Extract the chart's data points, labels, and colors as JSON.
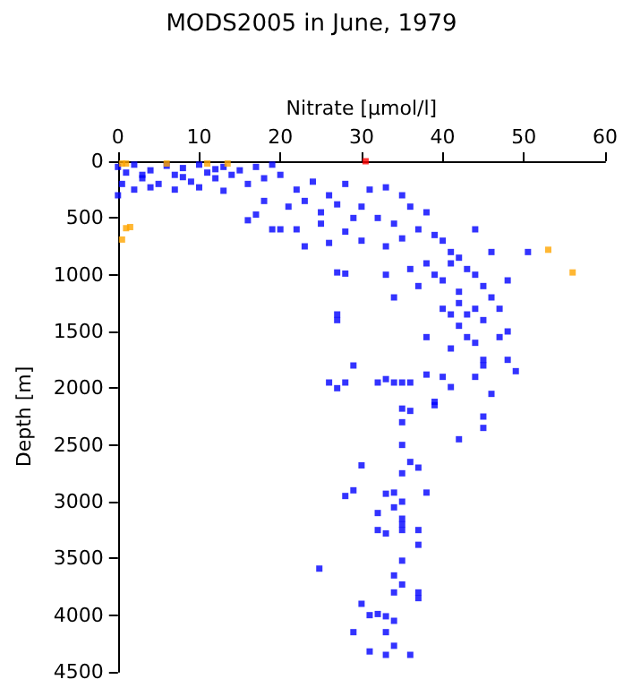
{
  "chart_data": {
    "type": "scatter",
    "title": "MODS2005 in June, 1979",
    "xlabel": "Nitrate [µmol/l]",
    "ylabel": "Depth [m]",
    "xlim": [
      0,
      60
    ],
    "xticks": [
      0,
      10,
      20,
      30,
      40,
      50,
      60
    ],
    "ylim": [
      4500,
      0
    ],
    "yticks": [
      0,
      500,
      1000,
      1500,
      2000,
      2500,
      3000,
      3500,
      4000,
      4500
    ],
    "grid": false,
    "marker": "square",
    "series": [
      {
        "color": "#0000ff",
        "x": [
          0,
          1,
          2,
          3,
          4,
          5,
          6,
          7,
          8,
          9,
          10,
          11,
          12,
          13,
          14,
          15,
          16,
          17,
          18,
          19,
          0.5,
          2,
          4,
          7,
          10,
          13,
          0,
          3,
          8,
          12,
          20,
          22,
          24,
          26,
          28,
          21,
          23,
          25,
          27,
          29,
          18,
          17,
          16,
          19,
          22,
          25,
          28,
          30,
          31,
          33,
          35,
          36,
          38,
          32,
          34,
          37,
          39,
          30,
          33,
          35,
          40,
          41,
          42,
          38,
          43,
          44,
          40,
          45,
          42,
          41,
          39,
          46,
          44,
          43,
          45,
          42,
          47,
          48,
          50.5,
          46,
          44,
          48,
          41,
          40,
          43,
          41,
          45,
          44,
          27,
          28,
          33,
          34,
          37,
          23,
          20,
          26,
          36,
          42,
          38,
          27,
          27,
          29,
          26,
          27,
          28,
          32,
          33,
          34,
          35,
          36,
          38,
          40,
          41,
          46,
          39,
          39,
          36,
          35,
          35,
          35,
          45,
          45,
          42,
          30,
          36,
          37,
          35,
          28,
          29,
          33,
          32,
          34,
          38,
          34,
          35,
          35,
          35,
          32,
          33,
          35,
          37,
          37,
          35,
          24.8,
          34,
          35,
          34,
          37,
          37,
          30,
          29,
          31,
          32,
          33,
          34,
          33,
          34,
          33,
          36,
          31,
          45,
          44,
          47,
          48,
          49
        ],
        "values": [
          50,
          100,
          30,
          150,
          80,
          200,
          40,
          120,
          60,
          180,
          30,
          100,
          150,
          50,
          120,
          80,
          200,
          50,
          150,
          30,
          200,
          250,
          230,
          250,
          230,
          260,
          300,
          120,
          140,
          70,
          120,
          250,
          180,
          300,
          200,
          400,
          350,
          450,
          380,
          500,
          350,
          470,
          520,
          600,
          600,
          550,
          620,
          400,
          250,
          230,
          300,
          400,
          450,
          500,
          550,
          600,
          650,
          700,
          750,
          680,
          700,
          800,
          850,
          900,
          950,
          1000,
          1050,
          1100,
          1150,
          900,
          1000,
          1200,
          1300,
          1350,
          1400,
          1450,
          1300,
          1050,
          800,
          800,
          600,
          1500,
          1350,
          1300,
          1550,
          1650,
          1750,
          1600,
          980,
          990,
          1000,
          1200,
          1100,
          750,
          600,
          720,
          950,
          1250,
          1550,
          1400,
          1350,
          1800,
          1950,
          2000,
          1950,
          1950,
          1920,
          1950,
          1950,
          1950,
          1880,
          1900,
          1990,
          2050,
          2150,
          2120,
          2200,
          2180,
          2300,
          2500,
          2250,
          2350,
          2450,
          2680,
          2650,
          2700,
          2750,
          2950,
          2900,
          2930,
          3100,
          2920,
          2920,
          3050,
          3000,
          3150,
          3200,
          3250,
          3280,
          3250,
          3250,
          3380,
          3520,
          3590,
          3650,
          3730,
          3800,
          3800,
          3850,
          3900,
          4150,
          4000,
          3990,
          4010,
          4050,
          4150,
          4270,
          4350,
          4350,
          4320,
          1800,
          1900,
          1550,
          1750,
          1850
        ]
      },
      {
        "color": "#ffa500",
        "x": [
          0.5,
          1,
          6,
          11,
          13.5,
          1,
          1.5,
          0.5,
          53,
          56
        ],
        "values": [
          20,
          20,
          20,
          20,
          20,
          590,
          580,
          690,
          780,
          980
        ]
      },
      {
        "color": "#ff0000",
        "x": [
          30.5
        ],
        "values": [
          0
        ]
      }
    ]
  }
}
